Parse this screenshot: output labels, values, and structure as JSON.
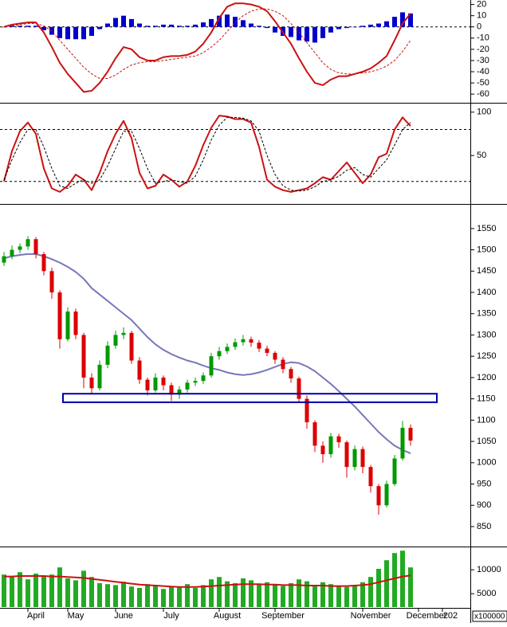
{
  "chart_data": [
    {
      "type": "macd",
      "ylim": [
        -67,
        24
      ],
      "yticks": [
        20,
        10,
        0,
        -10,
        -20,
        -30,
        -40,
        -50,
        -60
      ],
      "levels": [
        0
      ],
      "series": [
        {
          "style": "bar",
          "color": "#0000cc",
          "values": [
            0,
            1,
            1,
            1,
            1,
            -3,
            -7,
            -10,
            -11,
            -11,
            -11,
            -8,
            -2,
            3,
            8,
            10,
            7,
            3,
            1,
            1,
            2,
            2,
            1,
            1,
            2,
            4,
            7,
            10,
            11,
            9,
            6,
            3,
            1,
            -1,
            -5,
            -8,
            -9,
            -12,
            -13,
            -14,
            -10,
            -5,
            -2,
            -1,
            0,
            1,
            2,
            3,
            5,
            9,
            13,
            12
          ]
        },
        {
          "style": "line",
          "color": "#cc1111",
          "values": [
            0,
            2,
            3,
            4,
            4,
            -5,
            -18,
            -32,
            -42,
            -50,
            -58,
            -57,
            -50,
            -40,
            -28,
            -18,
            -20,
            -27,
            -30,
            -30,
            -27,
            -26,
            -26,
            -25,
            -22,
            -15,
            -5,
            8,
            18,
            21,
            21,
            20,
            18,
            14,
            5,
            -5,
            -15,
            -28,
            -40,
            -50,
            -52,
            -47,
            -44,
            -44,
            -42,
            -40,
            -37,
            -32,
            -26,
            -12,
            3,
            12
          ]
        },
        {
          "style": "dashed",
          "color": "#cc1111",
          "values": [
            0,
            1,
            2,
            3,
            3,
            1,
            -4,
            -12,
            -20,
            -28,
            -36,
            -42,
            -46,
            -46,
            -43,
            -38,
            -34,
            -32,
            -31,
            -31,
            -30,
            -29,
            -28,
            -27,
            -26,
            -23,
            -18,
            -12,
            -4,
            4,
            10,
            14,
            16,
            16,
            14,
            10,
            3,
            -5,
            -14,
            -23,
            -32,
            -38,
            -41,
            -42,
            -42,
            -41,
            -40,
            -38,
            -35,
            -30,
            -22,
            -12
          ]
        }
      ]
    },
    {
      "type": "line",
      "ylim": [
        -5,
        109
      ],
      "yticks": [
        100,
        50
      ],
      "levels": [
        20,
        80
      ],
      "series": [
        {
          "style": "line",
          "color": "#cc1111",
          "values": [
            20,
            55,
            78,
            88,
            75,
            35,
            12,
            8,
            15,
            28,
            22,
            10,
            30,
            55,
            75,
            90,
            70,
            30,
            12,
            15,
            28,
            22,
            14,
            20,
            38,
            62,
            82,
            96,
            95,
            92,
            92,
            88,
            60,
            22,
            14,
            10,
            8,
            10,
            12,
            18,
            25,
            22,
            32,
            42,
            30,
            18,
            28,
            48,
            52,
            80,
            94,
            84
          ]
        },
        {
          "style": "dashed",
          "color": "#000000",
          "values": [
            22,
            45,
            65,
            80,
            80,
            60,
            35,
            15,
            12,
            18,
            22,
            18,
            22,
            38,
            58,
            78,
            78,
            58,
            35,
            18,
            20,
            22,
            20,
            18,
            26,
            45,
            68,
            85,
            94,
            94,
            93,
            90,
            78,
            50,
            28,
            15,
            10,
            9,
            10,
            14,
            20,
            22,
            26,
            33,
            36,
            28,
            25,
            35,
            45,
            62,
            80,
            88
          ]
        }
      ]
    },
    {
      "type": "candlestick",
      "ylim": [
        805,
        1604
      ],
      "yticks": [
        850,
        900,
        950,
        1000,
        1050,
        1100,
        1150,
        1200,
        1250,
        1300,
        1350,
        1400,
        1450,
        1500,
        1550
      ],
      "up_color": "#009900",
      "down_color": "#dd0000",
      "zone": [
        1142,
        1162
      ],
      "zone_color": "#0000aa",
      "open": [
        1470,
        1485,
        1500,
        1508,
        1525,
        1490,
        1450,
        1400,
        1290,
        1355,
        1300,
        1200,
        1175,
        1230,
        1275,
        1300,
        1305,
        1240,
        1195,
        1170,
        1200,
        1182,
        1160,
        1172,
        1188,
        1192,
        1205,
        1250,
        1262,
        1272,
        1283,
        1290,
        1282,
        1268,
        1258,
        1242,
        1220,
        1198,
        1150,
        1095,
        1040,
        1020,
        1062,
        1048,
        990,
        1032,
        990,
        945,
        900,
        950,
        1010,
        1082
      ],
      "high": [
        1495,
        1510,
        1515,
        1532,
        1530,
        1495,
        1458,
        1405,
        1365,
        1362,
        1305,
        1210,
        1240,
        1285,
        1310,
        1318,
        1310,
        1248,
        1200,
        1210,
        1205,
        1188,
        1180,
        1195,
        1200,
        1212,
        1258,
        1272,
        1280,
        1292,
        1300,
        1296,
        1288,
        1275,
        1262,
        1248,
        1225,
        1202,
        1158,
        1100,
        1050,
        1070,
        1068,
        1052,
        1040,
        1038,
        995,
        950,
        958,
        1018,
        1098,
        1090
      ],
      "low": [
        1462,
        1478,
        1492,
        1500,
        1480,
        1440,
        1385,
        1268,
        1285,
        1290,
        1175,
        1160,
        1170,
        1222,
        1268,
        1290,
        1232,
        1185,
        1158,
        1165,
        1170,
        1145,
        1150,
        1165,
        1180,
        1185,
        1200,
        1242,
        1255,
        1265,
        1275,
        1272,
        1260,
        1250,
        1232,
        1210,
        1188,
        1140,
        1080,
        1025,
        1000,
        1012,
        1035,
        965,
        982,
        975,
        930,
        878,
        895,
        945,
        1005,
        1040
      ],
      "close": [
        1485,
        1500,
        1508,
        1525,
        1490,
        1450,
        1400,
        1290,
        1355,
        1300,
        1200,
        1175,
        1230,
        1275,
        1300,
        1305,
        1240,
        1195,
        1170,
        1200,
        1182,
        1160,
        1172,
        1188,
        1192,
        1205,
        1250,
        1262,
        1272,
        1283,
        1290,
        1282,
        1268,
        1258,
        1242,
        1220,
        1198,
        1150,
        1095,
        1040,
        1020,
        1062,
        1048,
        990,
        1032,
        990,
        945,
        900,
        950,
        1010,
        1082,
        1052
      ],
      "series": [
        {
          "style": "line",
          "color": "#7777bb",
          "values": [
            1480,
            1485,
            1488,
            1490,
            1490,
            1485,
            1478,
            1470,
            1460,
            1448,
            1432,
            1410,
            1395,
            1380,
            1365,
            1350,
            1335,
            1315,
            1295,
            1278,
            1265,
            1255,
            1247,
            1240,
            1235,
            1228,
            1222,
            1218,
            1212,
            1208,
            1206,
            1208,
            1212,
            1218,
            1225,
            1232,
            1236,
            1234,
            1226,
            1215,
            1200,
            1185,
            1168,
            1150,
            1132,
            1112,
            1092,
            1072,
            1055,
            1040,
            1030,
            1022
          ]
        }
      ]
    },
    {
      "type": "bar",
      "ylim": [
        2200,
        14700
      ],
      "yticks": [
        10000,
        5000
      ],
      "unit_label": "x100000",
      "categories": [
        null,
        null,
        null,
        null,
        "April",
        null,
        null,
        null,
        null,
        "May",
        null,
        null,
        null,
        null,
        null,
        "June",
        null,
        null,
        null,
        null,
        null,
        "July",
        null,
        null,
        null,
        null,
        null,
        null,
        "August",
        null,
        null,
        null,
        null,
        null,
        null,
        "September",
        null,
        null,
        null,
        null,
        null,
        null,
        null,
        null,
        null,
        null,
        "November",
        null,
        null,
        null,
        null,
        null,
        null,
        "December",
        null,
        null,
        "202"
      ],
      "series": [
        {
          "style": "bar",
          "color": "#22aa22",
          "values": [
            9000,
            8500,
            9500,
            8000,
            9200,
            8800,
            9000,
            10500,
            8200,
            7800,
            9800,
            8500,
            7200,
            7000,
            6800,
            7500,
            6500,
            6200,
            7000,
            6800,
            6000,
            6500,
            6400,
            7000,
            6200,
            6800,
            8000,
            8500,
            7600,
            7200,
            8200,
            7800,
            7000,
            7400,
            6800,
            6600,
            7200,
            8000,
            7600,
            6800,
            7400,
            7000,
            6600,
            6400,
            6800,
            7400,
            8500,
            10200,
            12000,
            13500,
            14000,
            10500,
            null,
            null,
            null,
            null,
            null
          ]
        },
        {
          "style": "line",
          "color": "#cc1111",
          "values": [
            8600,
            8600,
            8700,
            8700,
            8700,
            8700,
            8600,
            8600,
            8500,
            8400,
            8300,
            8100,
            7900,
            7700,
            7500,
            7300,
            7100,
            6900,
            6800,
            6700,
            6600,
            6500,
            6400,
            6400,
            6400,
            6500,
            6600,
            6700,
            6800,
            6900,
            7000,
            7000,
            7000,
            6900,
            6900,
            6800,
            6800,
            6800,
            6700,
            6700,
            6700,
            6600,
            6600,
            6600,
            6700,
            6800,
            7000,
            7400,
            7800,
            8200,
            8600,
            8800,
            null,
            null,
            null,
            null,
            null
          ]
        }
      ]
    }
  ]
}
